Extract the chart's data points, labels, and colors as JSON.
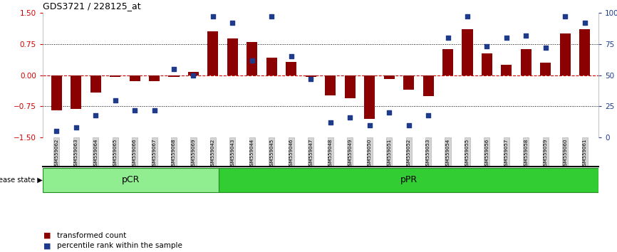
{
  "title": "GDS3721 / 228125_at",
  "samples": [
    "GSM559062",
    "GSM559063",
    "GSM559064",
    "GSM559065",
    "GSM559066",
    "GSM559067",
    "GSM559068",
    "GSM559069",
    "GSM559042",
    "GSM559043",
    "GSM559044",
    "GSM559045",
    "GSM559046",
    "GSM559047",
    "GSM559048",
    "GSM559049",
    "GSM559050",
    "GSM559051",
    "GSM559052",
    "GSM559053",
    "GSM559054",
    "GSM559055",
    "GSM559056",
    "GSM559057",
    "GSM559058",
    "GSM559059",
    "GSM559060",
    "GSM559061"
  ],
  "transformed_count": [
    -0.85,
    -0.82,
    -0.42,
    -0.05,
    -0.14,
    -0.14,
    -0.05,
    0.07,
    1.05,
    0.88,
    0.8,
    0.42,
    0.32,
    -0.04,
    -0.48,
    -0.56,
    -1.05,
    -0.09,
    -0.35,
    -0.5,
    0.63,
    1.1,
    0.52,
    0.25,
    0.62,
    0.3,
    1.0,
    1.1
  ],
  "percentile_rank": [
    5,
    8,
    18,
    30,
    22,
    22,
    55,
    50,
    97,
    92,
    62,
    97,
    65,
    47,
    12,
    16,
    10,
    20,
    10,
    18,
    80,
    97,
    73,
    80,
    82,
    72,
    97,
    92
  ],
  "pCR_count": 9,
  "bar_color": "#8B0000",
  "dot_color": "#1E3A8A",
  "pCR_color": "#90EE90",
  "pPR_color": "#32CD32",
  "bg_color": "#FFFFFF",
  "zero_line_color": "#CC0000",
  "ref_line_color": "#000000",
  "left_tick_color": "#CC0000",
  "right_tick_color": "#1E3A8A",
  "yticks_left": [
    -1.5,
    -0.75,
    0,
    0.75,
    1.5
  ],
  "yticks_right": [
    0,
    25,
    50,
    75,
    100
  ],
  "ytick_right_labels": [
    "0",
    "25",
    "50",
    "75",
    "100%"
  ],
  "bar_width": 0.55,
  "dot_size": 18,
  "xlabel_fontsize": 5.0,
  "title_fontsize": 9,
  "tick_label_fontsize": 7.5
}
